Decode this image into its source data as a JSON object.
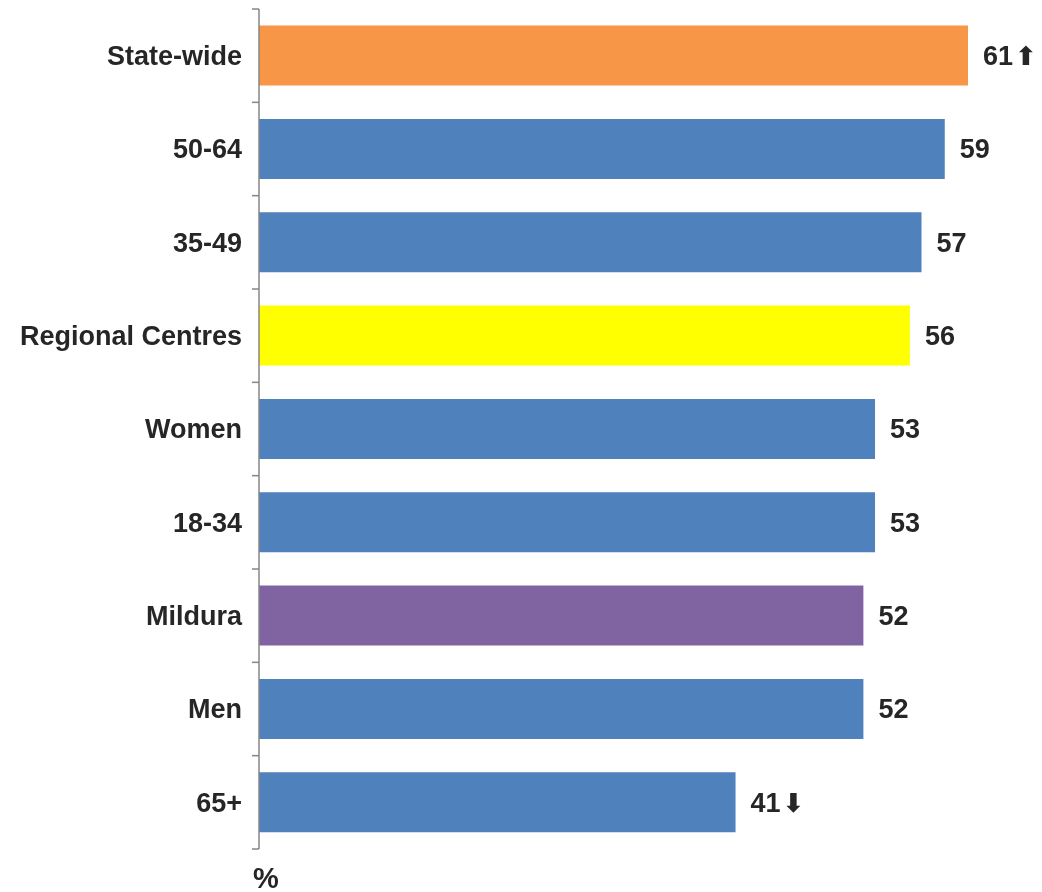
{
  "chart_data": {
    "type": "bar",
    "orientation": "horizontal",
    "xlabel": "%",
    "categories": [
      "State-wide",
      "50-64",
      "35-49",
      "Regional Centres",
      "Women",
      "18-34",
      "Mildura",
      "Men",
      "65+"
    ],
    "values": [
      61,
      59,
      57,
      56,
      53,
      53,
      52,
      52,
      41
    ],
    "colors": [
      "#f79646",
      "#4f81bd",
      "#4f81bd",
      "#ffff00",
      "#4f81bd",
      "#4f81bd",
      "#8064a2",
      "#4f81bd",
      "#4f81bd"
    ],
    "annotations": [
      {
        "text": "⬆",
        "x": 61,
        "y": "State-wide"
      },
      {
        "text": "⬇",
        "x": 41,
        "y": "65+"
      }
    ],
    "data_labels": true,
    "tick_labels": "y"
  }
}
